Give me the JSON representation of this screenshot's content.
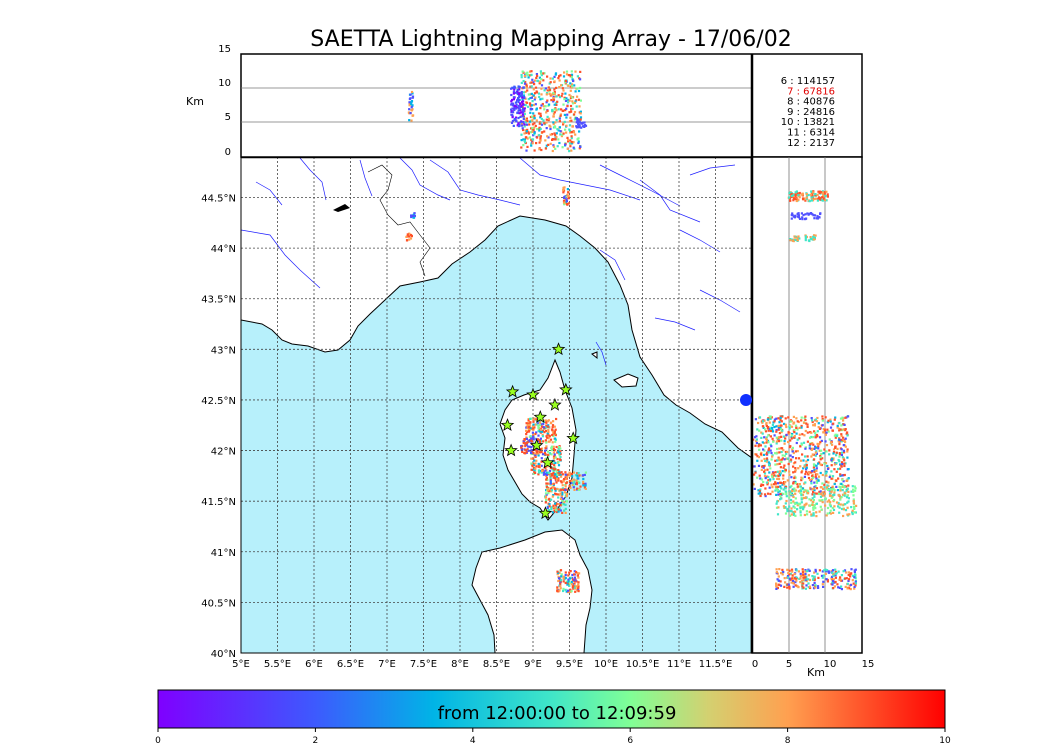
{
  "title": "SAETTA Lightning Mapping Array - 17/06/02",
  "colors": {
    "sea": "#b7f0fb",
    "land": "#ffffff",
    "coast": "#000000",
    "river": "#1f1fff",
    "grid": "#444444",
    "counts_highlight": "#e00000"
  },
  "alt_panel": {
    "ylabel": "Km",
    "yticks": [
      "15",
      "10",
      "5",
      "0"
    ]
  },
  "map": {
    "lat_labels": [
      "44.5°N",
      "44°N",
      "43.5°N",
      "43°N",
      "42.5°N",
      "42°N",
      "41.5°N",
      "41°N",
      "40.5°N",
      "40°N"
    ],
    "lon_labels": [
      "5°E",
      "5.5°E",
      "6°E",
      "6.5°E",
      "7°E",
      "7.5°E",
      "8°E",
      "8.5°E",
      "9°E",
      "9.5°E",
      "10°E",
      "10.5°E",
      "11°E",
      "11.5°E"
    ],
    "lon_range": [
      5,
      12
    ],
    "lat_range": [
      40,
      44.9
    ],
    "stations": [
      {
        "lon": 9.35,
        "lat": 43.0
      },
      {
        "lon": 8.72,
        "lat": 42.58
      },
      {
        "lon": 9.0,
        "lat": 42.55
      },
      {
        "lon": 9.45,
        "lat": 42.6
      },
      {
        "lon": 9.3,
        "lat": 42.45
      },
      {
        "lon": 9.1,
        "lat": 42.33
      },
      {
        "lon": 8.65,
        "lat": 42.25
      },
      {
        "lon": 9.55,
        "lat": 42.12
      },
      {
        "lon": 9.05,
        "lat": 42.05
      },
      {
        "lon": 8.7,
        "lat": 42.0
      },
      {
        "lon": 9.2,
        "lat": 41.88
      },
      {
        "lon": 9.17,
        "lat": 41.38
      }
    ]
  },
  "side_panel": {
    "xlabel": "Km",
    "xticks": [
      "0",
      "5",
      "10",
      "15"
    ]
  },
  "counts": [
    {
      "label": "6  :   114157",
      "highlight": false
    },
    {
      "label": "7  :    67816",
      "highlight": true
    },
    {
      "label": "8  :    40876",
      "highlight": false
    },
    {
      "label": "9  :    24816",
      "highlight": false
    },
    {
      "label": "10  :    13821",
      "highlight": false
    },
    {
      "label": "11  :     6314",
      "highlight": false
    },
    {
      "label": "12  :     2137",
      "highlight": false
    }
  ],
  "colorbar": {
    "label": "from 12:00:00 to 12:09:59",
    "ticks": [
      "0",
      "2",
      "4",
      "6",
      "8",
      "10"
    ],
    "range": [
      0,
      10
    ]
  }
}
